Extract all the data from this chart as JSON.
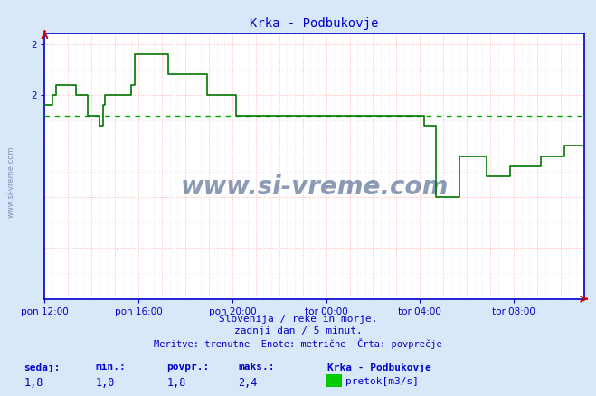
{
  "title": "Krka - Podbukovje",
  "bg_color": "#d8e8f8",
  "plot_bg_color": "#ffffff",
  "line_color": "#007700",
  "avg_line_color": "#00aa00",
  "grid_color_major": "#ffaaaa",
  "grid_color_minor": "#ddddee",
  "axis_color": "#0000cc",
  "text_color": "#0000cc",
  "title_color": "#0000cc",
  "watermark": "www.si-vreme.com",
  "watermark_color": "#1a3a6e",
  "sidebar_text": "www.si-vreme.com",
  "subtitle1": "Slovenija / reke in morje.",
  "subtitle2": "zadnji dan / 5 minut.",
  "subtitle3": "Meritve: trenutne  Enote: metrične  Črta: povprečje",
  "footer_labels": [
    "sedaj:",
    "min.:",
    "povpr.:",
    "maks.:"
  ],
  "footer_values": [
    "1,8",
    "1,0",
    "1,8",
    "2,4"
  ],
  "legend_title": "Krka - Podbukovje",
  "legend_label": "pretok[m3/s]",
  "legend_color": "#00cc00",
  "ylim": [
    0.0,
    2.6
  ],
  "avg_value": 1.8,
  "xticklabels": [
    "pon 12:00",
    "pon 16:00",
    "pon 20:00",
    "tor 00:00",
    "tor 04:00",
    "tor 08:00"
  ],
  "xtick_positions": [
    0,
    240,
    480,
    720,
    960,
    1200
  ],
  "total_minutes": 1380,
  "flow_data": [
    [
      0,
      1.9
    ],
    [
      10,
      1.9
    ],
    [
      20,
      2.0
    ],
    [
      30,
      2.1
    ],
    [
      60,
      2.1
    ],
    [
      80,
      2.0
    ],
    [
      110,
      1.8
    ],
    [
      140,
      1.7
    ],
    [
      150,
      1.9
    ],
    [
      155,
      2.0
    ],
    [
      220,
      2.1
    ],
    [
      230,
      2.4
    ],
    [
      315,
      2.4
    ],
    [
      316,
      2.2
    ],
    [
      415,
      2.2
    ],
    [
      416,
      2.0
    ],
    [
      480,
      2.0
    ],
    [
      490,
      1.8
    ],
    [
      720,
      1.8
    ],
    [
      960,
      1.8
    ],
    [
      965,
      1.7
    ],
    [
      1000,
      1.0
    ],
    [
      1060,
      1.4
    ],
    [
      1130,
      1.2
    ],
    [
      1190,
      1.3
    ],
    [
      1270,
      1.4
    ],
    [
      1330,
      1.5
    ],
    [
      1380,
      1.8
    ]
  ],
  "flow_data_full": [
    [
      0,
      1.9
    ],
    [
      5,
      1.9
    ],
    [
      10,
      1.9
    ],
    [
      15,
      1.9
    ],
    [
      20,
      2.0
    ],
    [
      25,
      2.0
    ],
    [
      30,
      2.1
    ],
    [
      35,
      2.1
    ],
    [
      40,
      2.1
    ],
    [
      45,
      2.1
    ],
    [
      50,
      2.1
    ],
    [
      55,
      2.1
    ],
    [
      60,
      2.1
    ],
    [
      65,
      2.1
    ],
    [
      70,
      2.1
    ],
    [
      75,
      2.1
    ],
    [
      80,
      2.0
    ],
    [
      85,
      2.0
    ],
    [
      90,
      2.0
    ],
    [
      95,
      2.0
    ],
    [
      100,
      2.0
    ],
    [
      105,
      2.0
    ],
    [
      110,
      1.8
    ],
    [
      115,
      1.8
    ],
    [
      120,
      1.8
    ],
    [
      125,
      1.8
    ],
    [
      130,
      1.8
    ],
    [
      135,
      1.8
    ],
    [
      140,
      1.7
    ],
    [
      145,
      1.7
    ],
    [
      150,
      1.9
    ],
    [
      155,
      2.0
    ],
    [
      160,
      2.0
    ],
    [
      165,
      2.0
    ],
    [
      170,
      2.0
    ],
    [
      175,
      2.0
    ],
    [
      180,
      2.0
    ],
    [
      185,
      2.0
    ],
    [
      190,
      2.0
    ],
    [
      195,
      2.0
    ],
    [
      200,
      2.0
    ],
    [
      205,
      2.0
    ],
    [
      210,
      2.0
    ],
    [
      215,
      2.0
    ],
    [
      220,
      2.1
    ],
    [
      225,
      2.1
    ],
    [
      230,
      2.4
    ],
    [
      235,
      2.4
    ],
    [
      240,
      2.4
    ],
    [
      245,
      2.4
    ],
    [
      250,
      2.4
    ],
    [
      255,
      2.4
    ],
    [
      260,
      2.4
    ],
    [
      265,
      2.4
    ],
    [
      270,
      2.4
    ],
    [
      275,
      2.4
    ],
    [
      280,
      2.4
    ],
    [
      285,
      2.4
    ],
    [
      290,
      2.4
    ],
    [
      295,
      2.4
    ],
    [
      300,
      2.4
    ],
    [
      305,
      2.4
    ],
    [
      310,
      2.4
    ],
    [
      315,
      2.2
    ],
    [
      320,
      2.2
    ],
    [
      325,
      2.2
    ],
    [
      330,
      2.2
    ],
    [
      335,
      2.2
    ],
    [
      340,
      2.2
    ],
    [
      345,
      2.2
    ],
    [
      350,
      2.2
    ],
    [
      355,
      2.2
    ],
    [
      360,
      2.2
    ],
    [
      365,
      2.2
    ],
    [
      370,
      2.2
    ],
    [
      375,
      2.2
    ],
    [
      380,
      2.2
    ],
    [
      385,
      2.2
    ],
    [
      390,
      2.2
    ],
    [
      395,
      2.2
    ],
    [
      400,
      2.2
    ],
    [
      405,
      2.2
    ],
    [
      410,
      2.2
    ],
    [
      415,
      2.0
    ],
    [
      420,
      2.0
    ],
    [
      425,
      2.0
    ],
    [
      430,
      2.0
    ],
    [
      435,
      2.0
    ],
    [
      440,
      2.0
    ],
    [
      445,
      2.0
    ],
    [
      450,
      2.0
    ],
    [
      455,
      2.0
    ],
    [
      460,
      2.0
    ],
    [
      465,
      2.0
    ],
    [
      470,
      2.0
    ],
    [
      475,
      2.0
    ],
    [
      480,
      2.0
    ],
    [
      485,
      2.0
    ],
    [
      490,
      1.8
    ],
    [
      495,
      1.8
    ],
    [
      500,
      1.8
    ],
    [
      505,
      1.8
    ],
    [
      510,
      1.8
    ],
    [
      515,
      1.8
    ],
    [
      520,
      1.8
    ],
    [
      525,
      1.8
    ],
    [
      530,
      1.8
    ],
    [
      535,
      1.8
    ],
    [
      540,
      1.8
    ],
    [
      545,
      1.8
    ],
    [
      550,
      1.8
    ],
    [
      555,
      1.8
    ],
    [
      560,
      1.8
    ],
    [
      565,
      1.8
    ],
    [
      570,
      1.8
    ],
    [
      575,
      1.8
    ],
    [
      580,
      1.8
    ],
    [
      585,
      1.8
    ],
    [
      590,
      1.8
    ],
    [
      595,
      1.8
    ],
    [
      600,
      1.8
    ],
    [
      605,
      1.8
    ],
    [
      610,
      1.8
    ],
    [
      615,
      1.8
    ],
    [
      620,
      1.8
    ],
    [
      625,
      1.8
    ],
    [
      630,
      1.8
    ],
    [
      635,
      1.8
    ],
    [
      640,
      1.8
    ],
    [
      645,
      1.8
    ],
    [
      650,
      1.8
    ],
    [
      655,
      1.8
    ],
    [
      660,
      1.8
    ],
    [
      665,
      1.8
    ],
    [
      670,
      1.8
    ],
    [
      675,
      1.8
    ],
    [
      680,
      1.8
    ],
    [
      685,
      1.8
    ],
    [
      690,
      1.8
    ],
    [
      695,
      1.8
    ],
    [
      700,
      1.8
    ],
    [
      705,
      1.8
    ],
    [
      710,
      1.8
    ],
    [
      715,
      1.8
    ],
    [
      720,
      1.8
    ],
    [
      725,
      1.8
    ],
    [
      730,
      1.8
    ],
    [
      735,
      1.8
    ],
    [
      740,
      1.8
    ],
    [
      745,
      1.8
    ],
    [
      750,
      1.8
    ],
    [
      755,
      1.8
    ],
    [
      760,
      1.8
    ],
    [
      765,
      1.8
    ],
    [
      770,
      1.8
    ],
    [
      775,
      1.8
    ],
    [
      780,
      1.8
    ],
    [
      785,
      1.8
    ],
    [
      790,
      1.8
    ],
    [
      795,
      1.8
    ],
    [
      800,
      1.8
    ],
    [
      805,
      1.8
    ],
    [
      810,
      1.8
    ],
    [
      815,
      1.8
    ],
    [
      820,
      1.8
    ],
    [
      825,
      1.8
    ],
    [
      830,
      1.8
    ],
    [
      835,
      1.8
    ],
    [
      840,
      1.8
    ],
    [
      845,
      1.8
    ],
    [
      850,
      1.8
    ],
    [
      855,
      1.8
    ],
    [
      860,
      1.8
    ],
    [
      865,
      1.8
    ],
    [
      870,
      1.8
    ],
    [
      875,
      1.8
    ],
    [
      880,
      1.8
    ],
    [
      885,
      1.8
    ],
    [
      890,
      1.8
    ],
    [
      895,
      1.8
    ],
    [
      900,
      1.8
    ],
    [
      905,
      1.8
    ],
    [
      910,
      1.8
    ],
    [
      915,
      1.8
    ],
    [
      920,
      1.8
    ],
    [
      925,
      1.8
    ],
    [
      930,
      1.8
    ],
    [
      935,
      1.8
    ],
    [
      940,
      1.8
    ],
    [
      945,
      1.8
    ],
    [
      950,
      1.8
    ],
    [
      955,
      1.8
    ],
    [
      960,
      1.8
    ],
    [
      965,
      1.8
    ],
    [
      970,
      1.7
    ],
    [
      975,
      1.7
    ],
    [
      980,
      1.7
    ],
    [
      985,
      1.7
    ],
    [
      990,
      1.7
    ],
    [
      995,
      1.7
    ],
    [
      1000,
      1.0
    ],
    [
      1005,
      1.0
    ],
    [
      1010,
      1.0
    ],
    [
      1015,
      1.0
    ],
    [
      1020,
      1.0
    ],
    [
      1025,
      1.0
    ],
    [
      1030,
      1.0
    ],
    [
      1035,
      1.0
    ],
    [
      1040,
      1.0
    ],
    [
      1045,
      1.0
    ],
    [
      1050,
      1.0
    ],
    [
      1055,
      1.0
    ],
    [
      1060,
      1.4
    ],
    [
      1065,
      1.4
    ],
    [
      1070,
      1.4
    ],
    [
      1075,
      1.4
    ],
    [
      1080,
      1.4
    ],
    [
      1085,
      1.4
    ],
    [
      1090,
      1.4
    ],
    [
      1095,
      1.4
    ],
    [
      1100,
      1.4
    ],
    [
      1105,
      1.4
    ],
    [
      1110,
      1.4
    ],
    [
      1115,
      1.4
    ],
    [
      1120,
      1.4
    ],
    [
      1125,
      1.4
    ],
    [
      1130,
      1.2
    ],
    [
      1135,
      1.2
    ],
    [
      1140,
      1.2
    ],
    [
      1145,
      1.2
    ],
    [
      1150,
      1.2
    ],
    [
      1155,
      1.2
    ],
    [
      1160,
      1.2
    ],
    [
      1165,
      1.2
    ],
    [
      1170,
      1.2
    ],
    [
      1175,
      1.2
    ],
    [
      1180,
      1.2
    ],
    [
      1185,
      1.2
    ],
    [
      1190,
      1.3
    ],
    [
      1195,
      1.3
    ],
    [
      1200,
      1.3
    ],
    [
      1205,
      1.3
    ],
    [
      1210,
      1.3
    ],
    [
      1215,
      1.3
    ],
    [
      1220,
      1.3
    ],
    [
      1225,
      1.3
    ],
    [
      1230,
      1.3
    ],
    [
      1235,
      1.3
    ],
    [
      1240,
      1.3
    ],
    [
      1245,
      1.3
    ],
    [
      1250,
      1.3
    ],
    [
      1255,
      1.3
    ],
    [
      1260,
      1.3
    ],
    [
      1265,
      1.3
    ],
    [
      1270,
      1.4
    ],
    [
      1275,
      1.4
    ],
    [
      1280,
      1.4
    ],
    [
      1285,
      1.4
    ],
    [
      1290,
      1.4
    ],
    [
      1295,
      1.4
    ],
    [
      1300,
      1.4
    ],
    [
      1305,
      1.4
    ],
    [
      1310,
      1.4
    ],
    [
      1315,
      1.4
    ],
    [
      1320,
      1.4
    ],
    [
      1325,
      1.4
    ],
    [
      1330,
      1.5
    ],
    [
      1335,
      1.5
    ],
    [
      1340,
      1.5
    ],
    [
      1345,
      1.5
    ],
    [
      1350,
      1.5
    ],
    [
      1355,
      1.5
    ],
    [
      1360,
      1.5
    ],
    [
      1365,
      1.5
    ],
    [
      1370,
      1.5
    ],
    [
      1375,
      1.5
    ],
    [
      1380,
      1.8
    ]
  ]
}
